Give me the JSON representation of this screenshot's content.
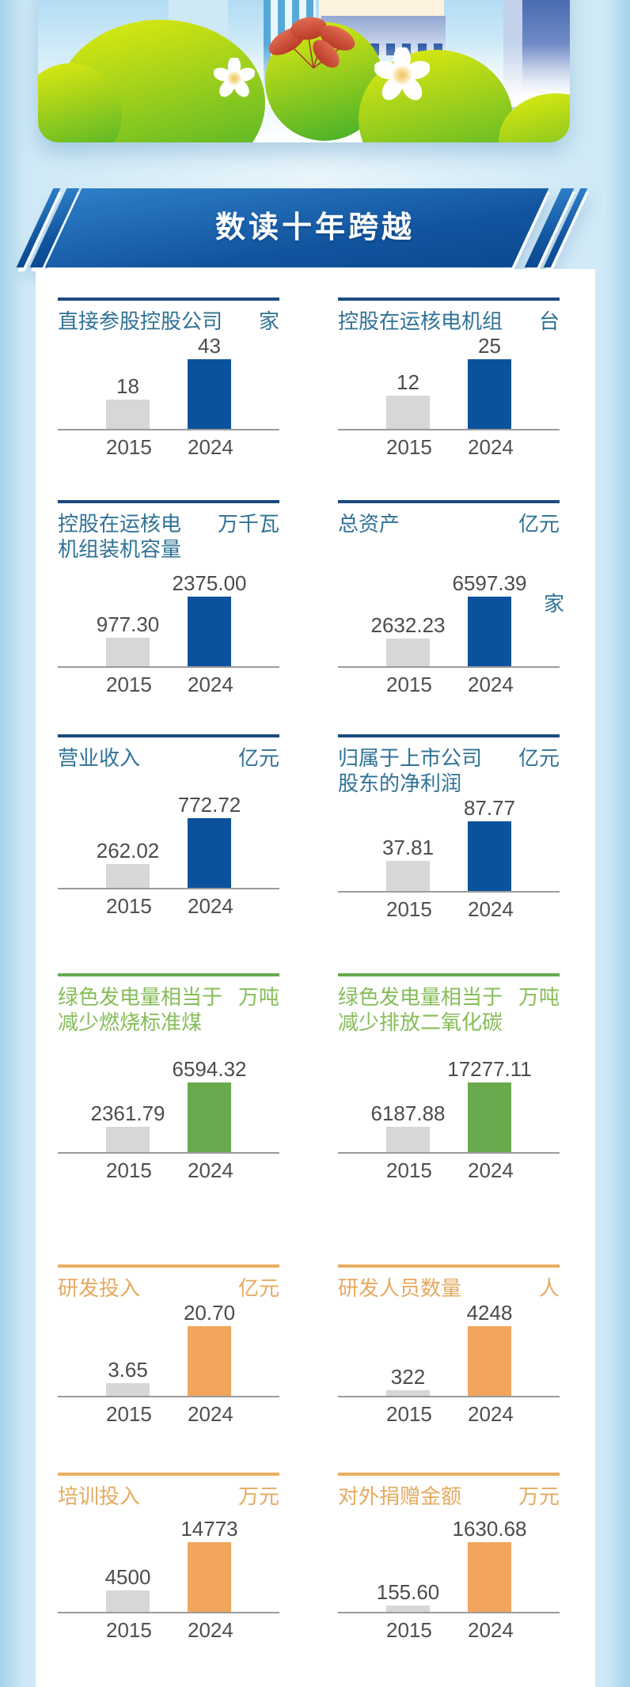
{
  "page": {
    "banner_title": "数读十年跨越"
  },
  "theme_colors": {
    "blue": {
      "divider": "#1b4a7e",
      "title": "#2f7295",
      "bar": "#0b529c"
    },
    "green": {
      "divider": "#69aa4e",
      "title": "#85bd58",
      "bar": "#69aa4e"
    },
    "orange": {
      "divider": "#e9ad62",
      "title": "#e5aa60",
      "bar": "#f1a55d"
    },
    "gray_bar": "#d7d7d7",
    "label": "#4c4c4c"
  },
  "chart_data": [
    {
      "type": "bar",
      "title": "直接参股控股公司",
      "unit": "家",
      "categories": [
        "2015",
        "2024"
      ],
      "values": [
        18,
        43
      ],
      "values_display": [
        "18",
        "43"
      ],
      "theme": "blue"
    },
    {
      "type": "bar",
      "title": "控股在运核电机组",
      "unit": "台",
      "categories": [
        "2015",
        "2024"
      ],
      "values": [
        12,
        25
      ],
      "values_display": [
        "12",
        "25"
      ],
      "theme": "blue"
    },
    {
      "type": "bar",
      "title": "控股在运核电\n机组装机容量",
      "unit": "万千瓦",
      "categories": [
        "2015",
        "2024"
      ],
      "values": [
        977.3,
        2375.0
      ],
      "values_display": [
        "977.30",
        "2375.00"
      ],
      "theme": "blue"
    },
    {
      "type": "bar",
      "title": "总资产",
      "unit": "亿元",
      "categories": [
        "2015",
        "2024"
      ],
      "values": [
        2632.23,
        6597.39
      ],
      "values_display": [
        "2632.23",
        "6597.39"
      ],
      "theme": "blue",
      "stray_label": "家"
    },
    {
      "type": "bar",
      "title": "营业收入",
      "unit": "亿元",
      "categories": [
        "2015",
        "2024"
      ],
      "values": [
        262.02,
        772.72
      ],
      "values_display": [
        "262.02",
        "772.72"
      ],
      "theme": "blue"
    },
    {
      "type": "bar",
      "title": "归属于上市公司\n股东的净利润",
      "unit": "亿元",
      "categories": [
        "2015",
        "2024"
      ],
      "values": [
        37.81,
        87.77
      ],
      "values_display": [
        "37.81",
        "87.77"
      ],
      "theme": "blue"
    },
    {
      "type": "bar",
      "title": "绿色发电量相当于\n减少燃烧标准煤",
      "unit": "万吨",
      "categories": [
        "2015",
        "2024"
      ],
      "values": [
        2361.79,
        6594.32
      ],
      "values_display": [
        "2361.79",
        "6594.32"
      ],
      "theme": "green"
    },
    {
      "type": "bar",
      "title": "绿色发电量相当于\n减少排放二氧化碳",
      "unit": "万吨",
      "categories": [
        "2015",
        "2024"
      ],
      "values": [
        6187.88,
        17277.11
      ],
      "values_display": [
        "6187.88",
        "17277.11"
      ],
      "theme": "green"
    },
    {
      "type": "bar",
      "title": "研发投入",
      "unit": "亿元",
      "categories": [
        "2015",
        "2024"
      ],
      "values": [
        3.65,
        20.7
      ],
      "values_display": [
        "3.65",
        "20.70"
      ],
      "theme": "orange"
    },
    {
      "type": "bar",
      "title": "研发人员数量",
      "unit": "人",
      "categories": [
        "2015",
        "2024"
      ],
      "values": [
        322,
        4248
      ],
      "values_display": [
        "322",
        "4248"
      ],
      "theme": "orange"
    },
    {
      "type": "bar",
      "title": "培训投入",
      "unit": "万元",
      "categories": [
        "2015",
        "2024"
      ],
      "values": [
        4500,
        14773
      ],
      "values_display": [
        "4500",
        "14773"
      ],
      "theme": "orange"
    },
    {
      "type": "bar",
      "title": "对外捐赠金额",
      "unit": "万元",
      "categories": [
        "2015",
        "2024"
      ],
      "values": [
        155.6,
        1630.68
      ],
      "values_display": [
        "155.60",
        "1630.68"
      ],
      "theme": "orange"
    }
  ],
  "rows": [
    [
      0,
      1
    ],
    [
      2,
      3
    ],
    [
      4,
      5
    ],
    [
      6,
      7
    ],
    [
      8,
      9
    ],
    [
      10,
      11
    ]
  ]
}
